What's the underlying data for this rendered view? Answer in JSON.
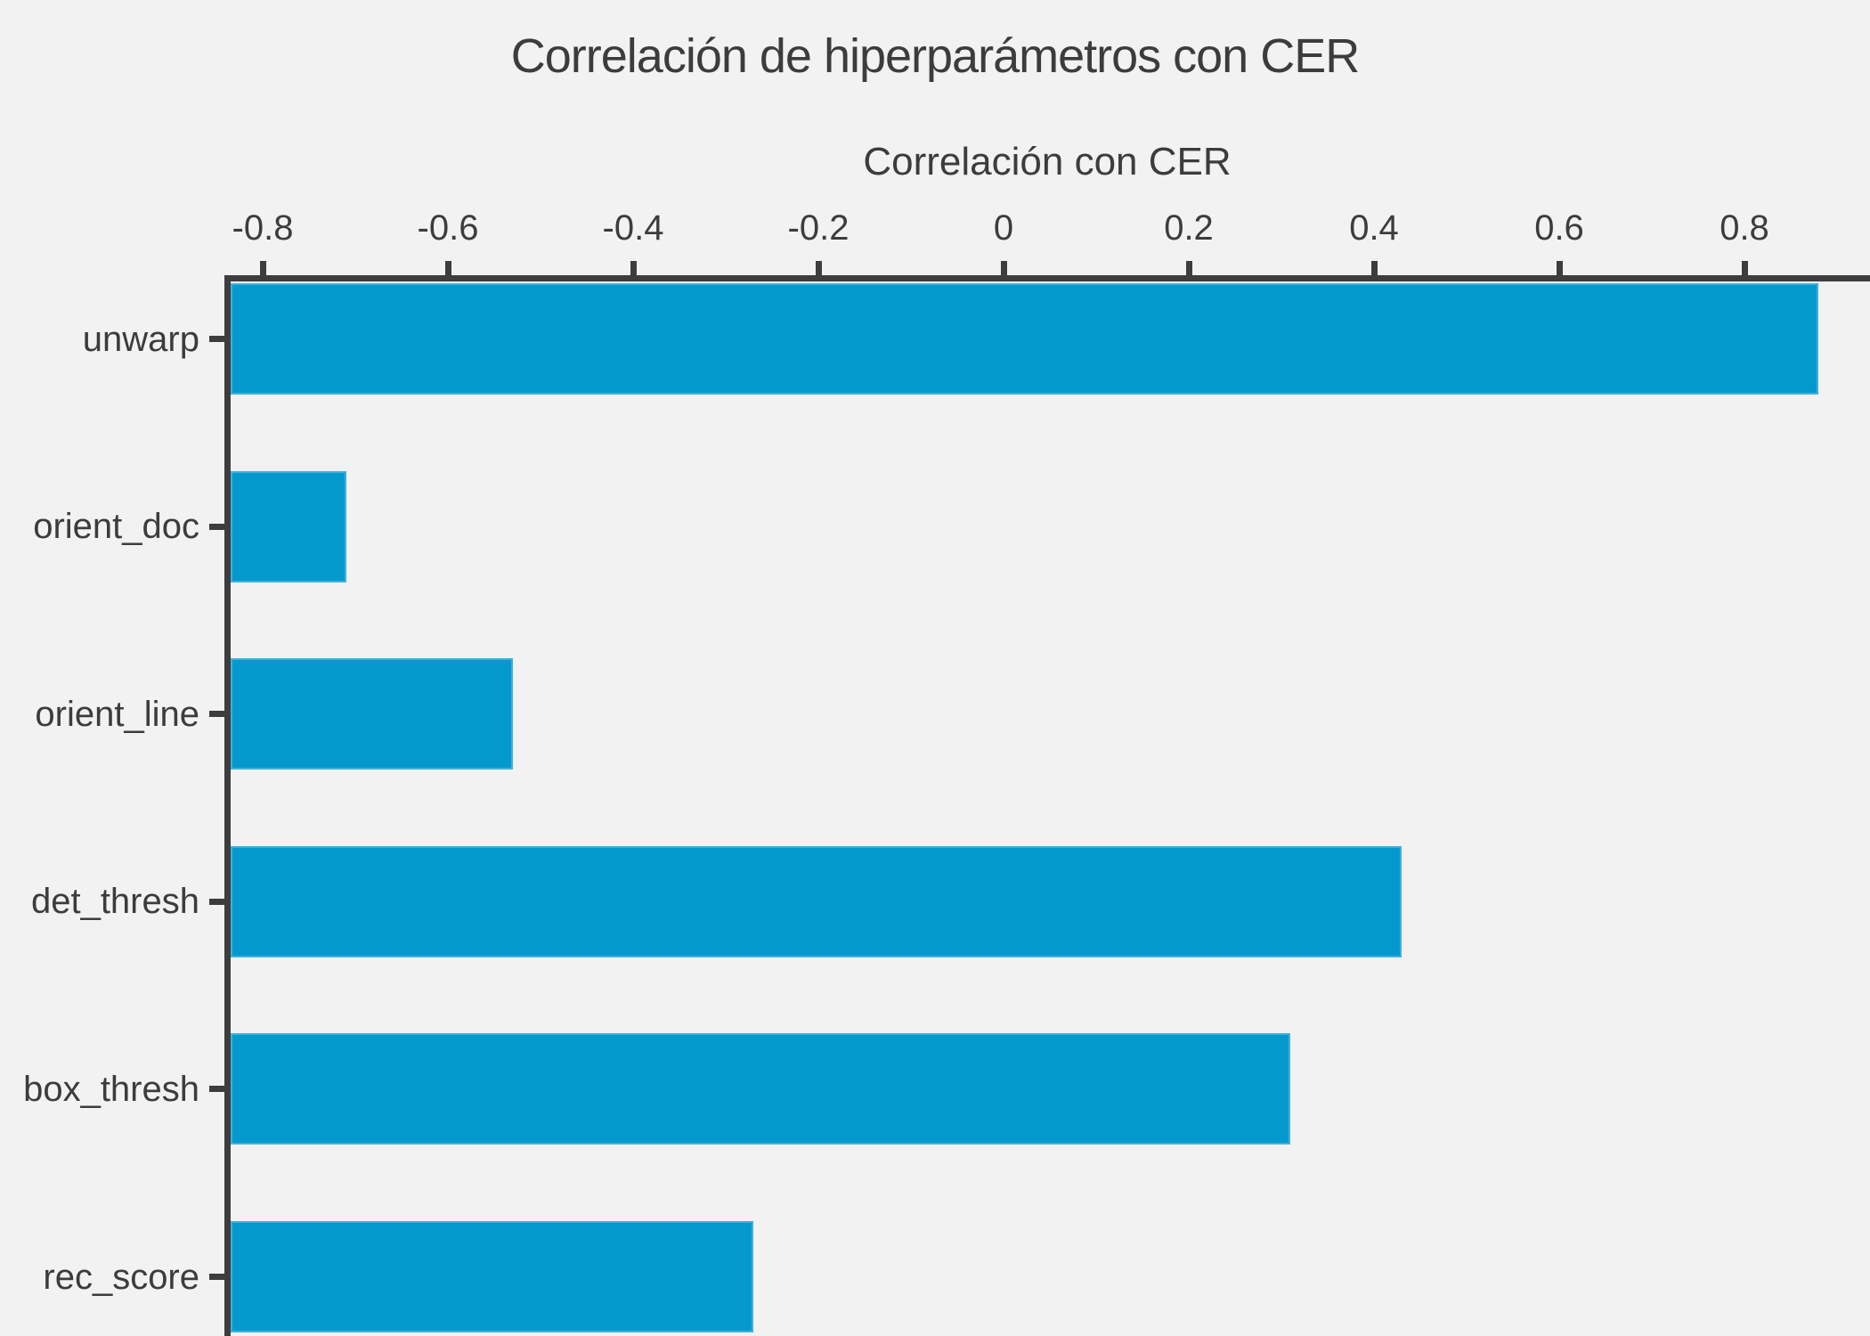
{
  "title": "Correlación de hiperparámetros con CER",
  "x_axis": {
    "label": "Correlación con CER",
    "tick_labels": [
      "-0.8",
      "-0.6",
      "-0.4",
      "-0.2",
      "0",
      "0.2",
      "0.4",
      "0.6",
      "0.8"
    ],
    "tick_values": [
      -0.8,
      -0.6,
      -0.4,
      -0.2,
      0,
      0.2,
      0.4,
      0.6,
      0.8
    ]
  },
  "chart_data": {
    "type": "bar",
    "orientation": "horizontal",
    "title": "Correlación de hiperparámetros con CER",
    "xlabel": "Correlación con CER",
    "xlabel_position": "top",
    "categories": [
      "unwarp",
      "orient_doc",
      "orient_line",
      "det_thresh",
      "box_thresh",
      "rec_score"
    ],
    "values": [
      0.88,
      -0.71,
      -0.53,
      0.43,
      0.31,
      -0.27
    ],
    "xlim": [
      -0.84,
      0.94
    ],
    "bar_base": "axis-left-edge",
    "grid": false,
    "legend": false
  },
  "colors": {
    "background": "#f2f2f2",
    "bar_fill": "#0499cd",
    "bar_edge": "#3fb1da",
    "axis": "#3d3d3d",
    "text": "#3c3c3c"
  }
}
